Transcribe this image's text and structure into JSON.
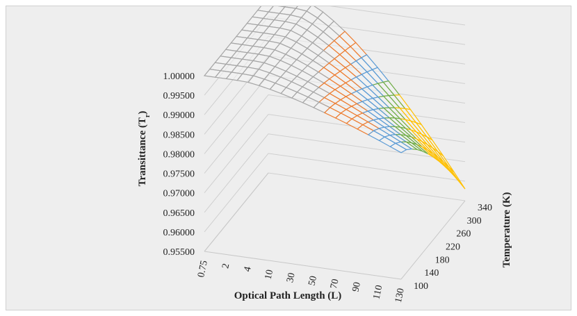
{
  "chart_data": {
    "type": "surface",
    "ylabel": "Transittance (T",
    "ylabel_sub": "r",
    "ylabel_close": ")",
    "xlabel": "Optical Path Length (L)",
    "zlabel": "Temperature (K)",
    "x_categories": [
      "0.75",
      "2",
      "4",
      "10",
      "30",
      "50",
      "70",
      "90",
      "110",
      "130"
    ],
    "z_categories": [
      "100",
      "140",
      "180",
      "220",
      "260",
      "300",
      "340"
    ],
    "y_ticks": [
      "0.95500",
      "0.96000",
      "0.96500",
      "0.97000",
      "0.97500",
      "0.98000",
      "0.98500",
      "0.99000",
      "0.99500",
      "1.00000"
    ],
    "ylim": [
      0.955,
      1.0
    ],
    "legend": "none",
    "grid": true,
    "band_colors": [
      "#a6a6a6",
      "#ed7d31",
      "#5b9bd5",
      "#70ad47",
      "#ffc000"
    ],
    "band_breaks": [
      0.995,
      0.99,
      0.985,
      0.98,
      0.975
    ]
  }
}
